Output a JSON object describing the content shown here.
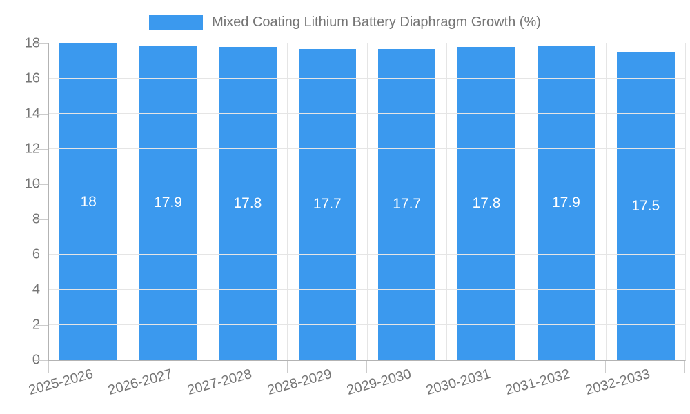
{
  "legend": {
    "label": "Mixed Coating Lithium Battery Diaphragm Growth (%)"
  },
  "colors": {
    "bar": "#3b99ee",
    "text": "#757575",
    "gridline": "#e5e5e5",
    "axis_line": "#b3b3b3",
    "tick_mark": "#cccccc",
    "value_label": "#ffffff",
    "background": "#ffffff"
  },
  "chart_data": {
    "type": "bar",
    "title": "Mixed Coating Lithium Battery Diaphragm Growth (%)",
    "categories": [
      "2025-2026",
      "2026-2027",
      "2027-2028",
      "2028-2029",
      "2029-2030",
      "2030-2031",
      "2031-2032",
      "2032-2033"
    ],
    "values": [
      18,
      17.9,
      17.8,
      17.7,
      17.7,
      17.8,
      17.9,
      17.5
    ],
    "value_labels": [
      "18",
      "17.9",
      "17.8",
      "17.7",
      "17.7",
      "17.8",
      "17.9",
      "17.5"
    ],
    "xlabel": "",
    "ylabel": "",
    "ylim": [
      0,
      18
    ],
    "yticks": [
      0,
      2,
      4,
      6,
      8,
      10,
      12,
      14,
      16,
      18
    ],
    "grid": true,
    "legend_position": "top-center",
    "bar_label_position": "center",
    "x_label_rotation_deg": -15
  }
}
